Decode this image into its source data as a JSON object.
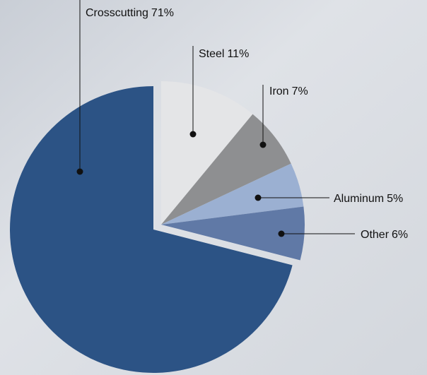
{
  "chart_data": {
    "type": "pie",
    "categories": [
      "Steel",
      "Iron",
      "Aluminum",
      "Other",
      "Crosscutting"
    ],
    "values": [
      11,
      7,
      5,
      6,
      71
    ],
    "value_labels": [
      "11%",
      "7%",
      "5%",
      "6%",
      "71%"
    ],
    "colors": [
      "#e4e5e7",
      "#8e8f91",
      "#9bb0d2",
      "#6079a6",
      "#2c5385"
    ]
  }
}
